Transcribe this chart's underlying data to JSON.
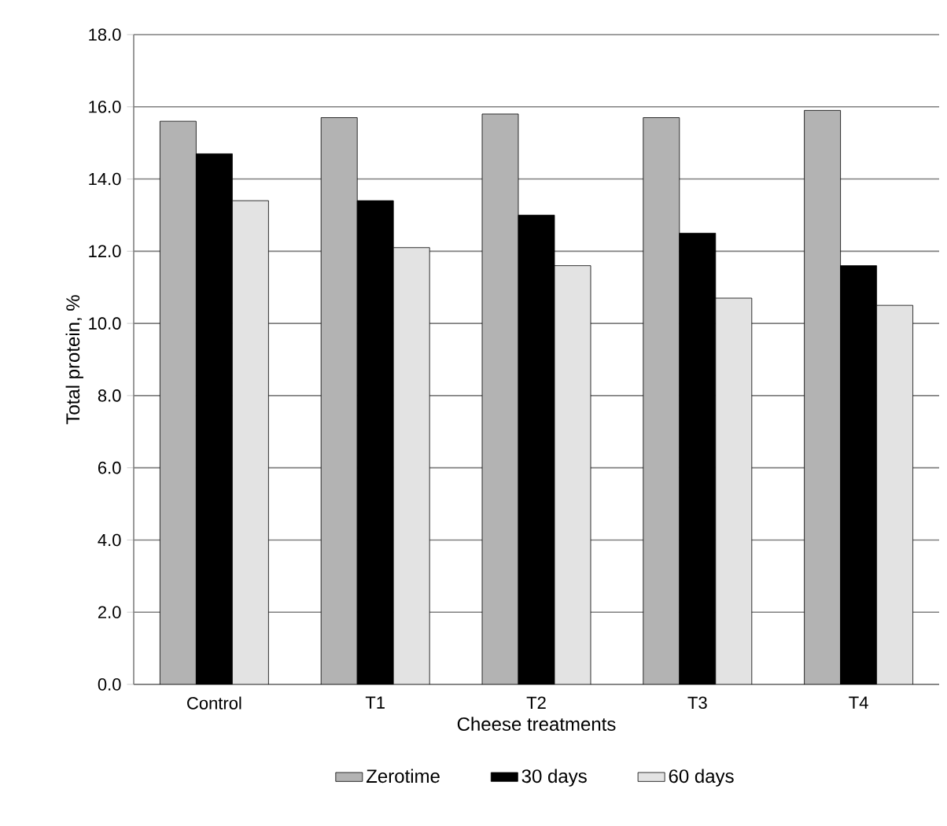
{
  "chart_data": {
    "type": "bar",
    "xlabel": "Cheese treatments",
    "ylabel": "Total protein, %",
    "categories": [
      "Control",
      "T1",
      "T2",
      "T3",
      "T4"
    ],
    "series": [
      {
        "name": "Zerotime",
        "color": "#b3b3b3",
        "values": [
          15.6,
          15.7,
          15.8,
          15.7,
          15.9
        ]
      },
      {
        "name": "30 days",
        "color": "#000000",
        "values": [
          14.7,
          13.4,
          13.0,
          12.5,
          11.6
        ]
      },
      {
        "name": "60 days",
        "color": "#e3e3e3",
        "values": [
          13.4,
          12.1,
          11.6,
          10.7,
          10.5
        ]
      }
    ],
    "ylim": [
      0,
      18
    ],
    "yticks": [
      {
        "value": 0,
        "label": "0.0"
      },
      {
        "value": 2,
        "label": "2.0"
      },
      {
        "value": 4,
        "label": "4.0"
      },
      {
        "value": 6,
        "label": "6.0"
      },
      {
        "value": 8,
        "label": "8.0"
      },
      {
        "value": 10,
        "label": "10.0"
      },
      {
        "value": 12,
        "label": "12.0"
      },
      {
        "value": 14,
        "label": "14.0"
      },
      {
        "value": 16,
        "label": "16.0"
      },
      {
        "value": 18,
        "label": "18.0"
      }
    ],
    "grid": "y",
    "legend": "bottom"
  }
}
